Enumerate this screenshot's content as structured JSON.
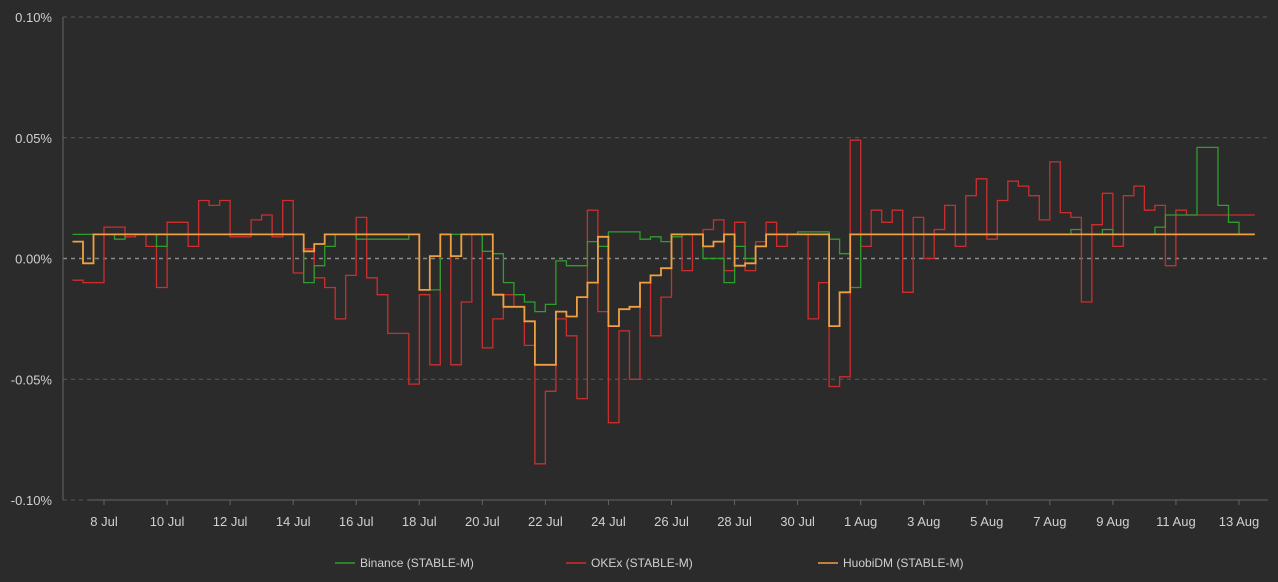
{
  "chart_data": {
    "type": "line",
    "title": "",
    "xlabel": "",
    "ylabel": "",
    "x_domain": [
      "2020-07-07",
      "2020-08-13T12:00"
    ],
    "ylim": [
      -0.1,
      0.1
    ],
    "y_ticks": [
      {
        "value": 0.1,
        "label": "0.10%"
      },
      {
        "value": 0.05,
        "label": "0.05%"
      },
      {
        "value": 0.0,
        "label": "0.00%"
      },
      {
        "value": -0.05,
        "label": "-0.05%"
      },
      {
        "value": -0.1,
        "label": "-0.10%"
      }
    ],
    "x_ticks": [
      {
        "date": "2020-07-08",
        "label": "8 Jul"
      },
      {
        "date": "2020-07-10",
        "label": "10 Jul"
      },
      {
        "date": "2020-07-12",
        "label": "12 Jul"
      },
      {
        "date": "2020-07-14",
        "label": "14 Jul"
      },
      {
        "date": "2020-07-16",
        "label": "16 Jul"
      },
      {
        "date": "2020-07-18",
        "label": "18 Jul"
      },
      {
        "date": "2020-07-20",
        "label": "20 Jul"
      },
      {
        "date": "2020-07-22",
        "label": "22 Jul"
      },
      {
        "date": "2020-07-24",
        "label": "24 Jul"
      },
      {
        "date": "2020-07-26",
        "label": "26 Jul"
      },
      {
        "date": "2020-07-28",
        "label": "28 Jul"
      },
      {
        "date": "2020-07-30",
        "label": "30 Jul"
      },
      {
        "date": "2020-08-01",
        "label": "1 Aug"
      },
      {
        "date": "2020-08-03",
        "label": "3 Aug"
      },
      {
        "date": "2020-08-05",
        "label": "5 Aug"
      },
      {
        "date": "2020-08-07",
        "label": "7 Aug"
      },
      {
        "date": "2020-08-09",
        "label": "9 Aug"
      },
      {
        "date": "2020-08-11",
        "label": "11 Aug"
      },
      {
        "date": "2020-08-13",
        "label": "13 Aug"
      }
    ],
    "grid": "horizontal-dashed",
    "legend_position": "bottom",
    "series": [
      {
        "name": "Binance (STABLE-M)",
        "color": "#2e9e2e",
        "step": true,
        "points": [
          [
            "2020-07-07T00:00",
            0.01
          ],
          [
            "2020-07-08T00:00",
            0.01
          ],
          [
            "2020-07-08T08:00",
            0.008
          ],
          [
            "2020-07-08T16:00",
            0.01
          ],
          [
            "2020-07-09T16:00",
            0.005
          ],
          [
            "2020-07-10T00:00",
            0.01
          ],
          [
            "2020-07-14T00:00",
            0.01
          ],
          [
            "2020-07-14T08:00",
            -0.01
          ],
          [
            "2020-07-14T16:00",
            -0.003
          ],
          [
            "2020-07-15T00:00",
            0.005
          ],
          [
            "2020-07-15T08:00",
            0.01
          ],
          [
            "2020-07-16T00:00",
            0.008
          ],
          [
            "2020-07-17T00:00",
            0.008
          ],
          [
            "2020-07-17T16:00",
            0.01
          ],
          [
            "2020-07-18T00:00",
            -0.013
          ],
          [
            "2020-07-18T16:00",
            0.01
          ],
          [
            "2020-07-19T00:00",
            0.01
          ],
          [
            "2020-07-20T00:00",
            0.003
          ],
          [
            "2020-07-20T08:00",
            0.002
          ],
          [
            "2020-07-20T16:00",
            -0.01
          ],
          [
            "2020-07-21T00:00",
            -0.015
          ],
          [
            "2020-07-21T08:00",
            -0.018
          ],
          [
            "2020-07-21T16:00",
            -0.022
          ],
          [
            "2020-07-22T00:00",
            -0.019
          ],
          [
            "2020-07-22T08:00",
            -0.001
          ],
          [
            "2020-07-22T16:00",
            -0.003
          ],
          [
            "2020-07-23T08:00",
            0.007
          ],
          [
            "2020-07-23T16:00",
            0.005
          ],
          [
            "2020-07-24T00:00",
            0.011
          ],
          [
            "2020-07-25T00:00",
            0.008
          ],
          [
            "2020-07-25T08:00",
            0.009
          ],
          [
            "2020-07-25T16:00",
            0.007
          ],
          [
            "2020-07-26T00:00",
            0.009
          ],
          [
            "2020-07-26T08:00",
            0.01
          ],
          [
            "2020-07-27T00:00",
            0.0
          ],
          [
            "2020-07-27T16:00",
            -0.01
          ],
          [
            "2020-07-28T00:00",
            0.005
          ],
          [
            "2020-07-28T08:00",
            0.0
          ],
          [
            "2020-07-28T16:00",
            0.005
          ],
          [
            "2020-07-29T00:00",
            0.01
          ],
          [
            "2020-07-30T00:00",
            0.011
          ],
          [
            "2020-07-31T00:00",
            0.008
          ],
          [
            "2020-07-31T08:00",
            0.002
          ],
          [
            "2020-07-31T16:00",
            -0.012
          ],
          [
            "2020-08-01T00:00",
            0.01
          ],
          [
            "2020-08-07T00:00",
            0.01
          ],
          [
            "2020-08-07T16:00",
            0.012
          ],
          [
            "2020-08-08T00:00",
            0.01
          ],
          [
            "2020-08-08T16:00",
            0.012
          ],
          [
            "2020-08-09T00:00",
            0.01
          ],
          [
            "2020-08-10T08:00",
            0.013
          ],
          [
            "2020-08-10T16:00",
            0.018
          ],
          [
            "2020-08-11T16:00",
            0.046
          ],
          [
            "2020-08-12T08:00",
            0.022
          ],
          [
            "2020-08-12T16:00",
            0.015
          ],
          [
            "2020-08-13T00:00",
            0.01
          ],
          [
            "2020-08-13T12:00",
            0.01
          ]
        ]
      },
      {
        "name": "OKEx (STABLE-M)",
        "color": "#cc2e2e",
        "step": true,
        "points": [
          [
            "2020-07-07T00:00",
            -0.009
          ],
          [
            "2020-07-07T08:00",
            -0.01
          ],
          [
            "2020-07-08T00:00",
            0.013
          ],
          [
            "2020-07-08T16:00",
            0.009
          ],
          [
            "2020-07-09T00:00",
            0.01
          ],
          [
            "2020-07-09T08:00",
            0.005
          ],
          [
            "2020-07-09T16:00",
            -0.012
          ],
          [
            "2020-07-10T00:00",
            0.015
          ],
          [
            "2020-07-10T16:00",
            0.005
          ],
          [
            "2020-07-11T00:00",
            0.024
          ],
          [
            "2020-07-11T08:00",
            0.022
          ],
          [
            "2020-07-11T16:00",
            0.024
          ],
          [
            "2020-07-12T00:00",
            0.009
          ],
          [
            "2020-07-12T16:00",
            0.016
          ],
          [
            "2020-07-13T00:00",
            0.018
          ],
          [
            "2020-07-13T08:00",
            0.009
          ],
          [
            "2020-07-13T16:00",
            0.024
          ],
          [
            "2020-07-14T00:00",
            -0.006
          ],
          [
            "2020-07-14T08:00",
            0.004
          ],
          [
            "2020-07-14T16:00",
            -0.008
          ],
          [
            "2020-07-15T00:00",
            -0.012
          ],
          [
            "2020-07-15T08:00",
            -0.025
          ],
          [
            "2020-07-15T16:00",
            -0.007
          ],
          [
            "2020-07-16T00:00",
            0.017
          ],
          [
            "2020-07-16T08:00",
            -0.008
          ],
          [
            "2020-07-16T16:00",
            -0.015
          ],
          [
            "2020-07-17T00:00",
            -0.031
          ],
          [
            "2020-07-17T16:00",
            -0.052
          ],
          [
            "2020-07-18T00:00",
            -0.015
          ],
          [
            "2020-07-18T08:00",
            -0.044
          ],
          [
            "2020-07-18T16:00",
            0.01
          ],
          [
            "2020-07-19T00:00",
            -0.044
          ],
          [
            "2020-07-19T08:00",
            -0.018
          ],
          [
            "2020-07-19T16:00",
            0.01
          ],
          [
            "2020-07-20T00:00",
            -0.037
          ],
          [
            "2020-07-20T08:00",
            -0.025
          ],
          [
            "2020-07-20T16:00",
            -0.015
          ],
          [
            "2020-07-21T00:00",
            -0.02
          ],
          [
            "2020-07-21T08:00",
            -0.036
          ],
          [
            "2020-07-21T16:00",
            -0.085
          ],
          [
            "2020-07-22T00:00",
            -0.055
          ],
          [
            "2020-07-22T08:00",
            -0.025
          ],
          [
            "2020-07-22T16:00",
            -0.032
          ],
          [
            "2020-07-23T00:00",
            -0.058
          ],
          [
            "2020-07-23T08:00",
            0.02
          ],
          [
            "2020-07-23T16:00",
            -0.022
          ],
          [
            "2020-07-24T00:00",
            -0.068
          ],
          [
            "2020-07-24T08:00",
            -0.03
          ],
          [
            "2020-07-24T16:00",
            -0.05
          ],
          [
            "2020-07-25T00:00",
            -0.01
          ],
          [
            "2020-07-25T08:00",
            -0.032
          ],
          [
            "2020-07-25T16:00",
            -0.016
          ],
          [
            "2020-07-26T00:00",
            0.01
          ],
          [
            "2020-07-26T08:00",
            -0.005
          ],
          [
            "2020-07-26T16:00",
            0.01
          ],
          [
            "2020-07-27T00:00",
            0.012
          ],
          [
            "2020-07-27T08:00",
            0.016
          ],
          [
            "2020-07-27T16:00",
            -0.005
          ],
          [
            "2020-07-28T00:00",
            0.015
          ],
          [
            "2020-07-28T08:00",
            -0.005
          ],
          [
            "2020-07-28T16:00",
            0.007
          ],
          [
            "2020-07-29T00:00",
            0.015
          ],
          [
            "2020-07-29T08:00",
            0.005
          ],
          [
            "2020-07-29T16:00",
            0.01
          ],
          [
            "2020-07-30T08:00",
            -0.025
          ],
          [
            "2020-07-30T16:00",
            -0.01
          ],
          [
            "2020-07-31T00:00",
            -0.053
          ],
          [
            "2020-07-31T08:00",
            -0.049
          ],
          [
            "2020-07-31T16:00",
            0.049
          ],
          [
            "2020-08-01T00:00",
            0.005
          ],
          [
            "2020-08-01T08:00",
            0.02
          ],
          [
            "2020-08-01T16:00",
            0.015
          ],
          [
            "2020-08-02T00:00",
            0.02
          ],
          [
            "2020-08-02T08:00",
            -0.014
          ],
          [
            "2020-08-02T16:00",
            0.017
          ],
          [
            "2020-08-03T00:00",
            0.0
          ],
          [
            "2020-08-03T08:00",
            0.012
          ],
          [
            "2020-08-03T16:00",
            0.022
          ],
          [
            "2020-08-04T00:00",
            0.005
          ],
          [
            "2020-08-04T08:00",
            0.026
          ],
          [
            "2020-08-04T16:00",
            0.033
          ],
          [
            "2020-08-05T00:00",
            0.008
          ],
          [
            "2020-08-05T08:00",
            0.024
          ],
          [
            "2020-08-05T16:00",
            0.032
          ],
          [
            "2020-08-06T00:00",
            0.03
          ],
          [
            "2020-08-06T08:00",
            0.026
          ],
          [
            "2020-08-06T16:00",
            0.016
          ],
          [
            "2020-08-07T00:00",
            0.04
          ],
          [
            "2020-08-07T08:00",
            0.019
          ],
          [
            "2020-08-07T16:00",
            0.017
          ],
          [
            "2020-08-08T00:00",
            -0.018
          ],
          [
            "2020-08-08T08:00",
            0.014
          ],
          [
            "2020-08-08T16:00",
            0.027
          ],
          [
            "2020-08-09T00:00",
            0.005
          ],
          [
            "2020-08-09T08:00",
            0.026
          ],
          [
            "2020-08-09T16:00",
            0.03
          ],
          [
            "2020-08-10T00:00",
            0.02
          ],
          [
            "2020-08-10T08:00",
            0.022
          ],
          [
            "2020-08-10T16:00",
            -0.003
          ],
          [
            "2020-08-11T00:00",
            0.02
          ],
          [
            "2020-08-11T08:00",
            0.018
          ],
          [
            "2020-08-11T16:00",
            0.018
          ],
          [
            "2020-08-13T12:00",
            0.018
          ]
        ]
      },
      {
        "name": "HuobiDM (STABLE-M)",
        "color": "#f0a040",
        "step": true,
        "points": [
          [
            "2020-07-07T00:00",
            0.007
          ],
          [
            "2020-07-07T08:00",
            -0.002
          ],
          [
            "2020-07-07T16:00",
            0.01
          ],
          [
            "2020-07-14T00:00",
            0.01
          ],
          [
            "2020-07-14T08:00",
            0.003
          ],
          [
            "2020-07-14T16:00",
            0.006
          ],
          [
            "2020-07-15T00:00",
            0.01
          ],
          [
            "2020-07-17T16:00",
            0.01
          ],
          [
            "2020-07-18T00:00",
            -0.013
          ],
          [
            "2020-07-18T08:00",
            0.001
          ],
          [
            "2020-07-18T16:00",
            0.01
          ],
          [
            "2020-07-19T00:00",
            0.001
          ],
          [
            "2020-07-19T08:00",
            0.01
          ],
          [
            "2020-07-20T00:00",
            0.01
          ],
          [
            "2020-07-20T08:00",
            -0.015
          ],
          [
            "2020-07-20T16:00",
            -0.02
          ],
          [
            "2020-07-21T00:00",
            -0.02
          ],
          [
            "2020-07-21T08:00",
            -0.026
          ],
          [
            "2020-07-21T16:00",
            -0.044
          ],
          [
            "2020-07-22T00:00",
            -0.044
          ],
          [
            "2020-07-22T08:00",
            -0.022
          ],
          [
            "2020-07-22T16:00",
            -0.024
          ],
          [
            "2020-07-23T00:00",
            -0.016
          ],
          [
            "2020-07-23T08:00",
            -0.01
          ],
          [
            "2020-07-23T16:00",
            0.009
          ],
          [
            "2020-07-24T00:00",
            -0.028
          ],
          [
            "2020-07-24T08:00",
            -0.021
          ],
          [
            "2020-07-24T16:00",
            -0.02
          ],
          [
            "2020-07-25T00:00",
            -0.01
          ],
          [
            "2020-07-25T08:00",
            -0.007
          ],
          [
            "2020-07-25T16:00",
            -0.004
          ],
          [
            "2020-07-26T00:00",
            0.01
          ],
          [
            "2020-07-27T00:00",
            0.005
          ],
          [
            "2020-07-27T08:00",
            0.007
          ],
          [
            "2020-07-27T16:00",
            0.01
          ],
          [
            "2020-07-28T00:00",
            -0.003
          ],
          [
            "2020-07-28T08:00",
            -0.002
          ],
          [
            "2020-07-28T16:00",
            0.005
          ],
          [
            "2020-07-29T00:00",
            0.01
          ],
          [
            "2020-07-30T00:00",
            0.01
          ],
          [
            "2020-07-31T00:00",
            -0.028
          ],
          [
            "2020-07-31T08:00",
            -0.014
          ],
          [
            "2020-07-31T16:00",
            0.01
          ],
          [
            "2020-08-13T12:00",
            0.01
          ]
        ]
      }
    ]
  }
}
